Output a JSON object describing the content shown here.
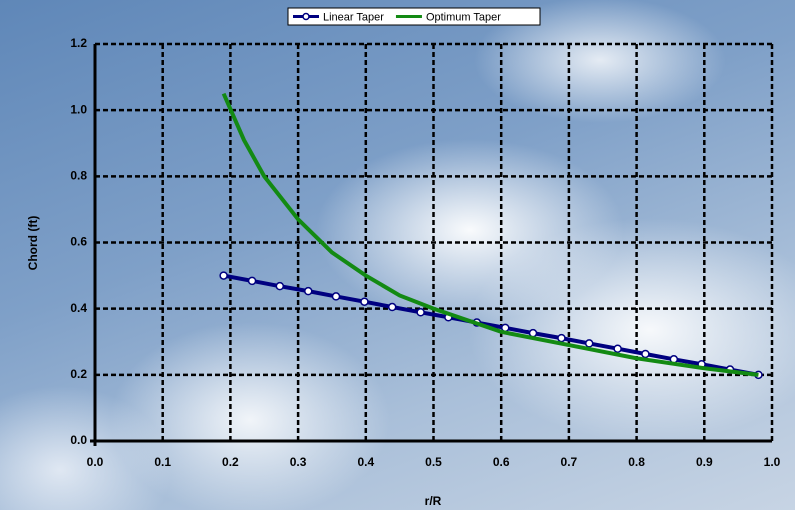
{
  "chart_data": {
    "type": "line",
    "xlabel": "r/R",
    "ylabel": "Chord (ft)",
    "xlim": [
      0,
      1
    ],
    "ylim": [
      0,
      1.2
    ],
    "xticks": [
      {
        "value": 0,
        "label": "0.0"
      },
      0.1,
      0.2,
      0.3,
      0.4,
      0.5,
      0.6,
      0.7,
      0.8,
      0.9,
      {
        "value": 1,
        "label": "1.0"
      }
    ],
    "yticks": [
      {
        "value": 0,
        "label": "0.0"
      },
      0.2,
      0.4,
      0.6,
      0.8,
      {
        "value": 1,
        "label": "1.0"
      },
      1.2
    ],
    "grid": true,
    "legend": "top",
    "series": [
      {
        "name": "Linear Taper",
        "color": "#000080",
        "marker": true,
        "x": [
          0.19,
          0.232,
          0.273,
          0.315,
          0.356,
          0.398,
          0.439,
          0.481,
          0.522,
          0.564,
          0.606,
          0.647,
          0.689,
          0.73,
          0.772,
          0.813,
          0.855,
          0.896,
          0.938,
          0.98
        ],
        "values": [
          0.5,
          0.484,
          0.468,
          0.453,
          0.437,
          0.421,
          0.405,
          0.389,
          0.374,
          0.358,
          0.342,
          0.326,
          0.311,
          0.295,
          0.279,
          0.263,
          0.247,
          0.232,
          0.216,
          0.2
        ]
      },
      {
        "name": "Optimum Taper",
        "color": "#138a13",
        "marker": false,
        "x": [
          0.19,
          0.22,
          0.25,
          0.3,
          0.35,
          0.4,
          0.45,
          0.5,
          0.6,
          0.7,
          0.8,
          0.9,
          0.98
        ],
        "values": [
          1.05,
          0.91,
          0.8,
          0.67,
          0.57,
          0.5,
          0.44,
          0.4,
          0.33,
          0.29,
          0.25,
          0.22,
          0.2
        ]
      }
    ]
  }
}
